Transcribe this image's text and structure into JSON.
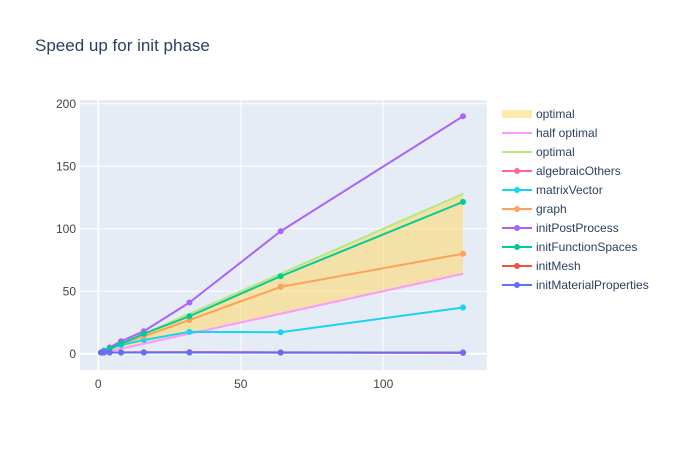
{
  "chart_data": {
    "type": "line",
    "title": "Speed up for init phase",
    "xlabel": "",
    "ylabel": "",
    "xlim": [
      -6.4,
      136.4
    ],
    "ylim": [
      -13,
      203
    ],
    "x_ticks": [
      0,
      50,
      100
    ],
    "y_ticks": [
      0,
      50,
      100,
      150,
      200
    ],
    "grid": true,
    "legend_position": "right",
    "band": {
      "name": "optimal",
      "color": "#ffd966",
      "x": [
        1,
        2,
        4,
        8,
        16,
        32,
        64,
        128
      ],
      "lower": [
        0.5,
        1,
        2,
        4,
        8,
        16,
        32,
        64
      ],
      "upper": [
        1,
        2,
        4,
        8,
        16,
        32,
        64,
        128
      ]
    },
    "series": [
      {
        "name": "half optimal",
        "color": "#ff97ff",
        "markers": false,
        "x": [
          1,
          2,
          4,
          8,
          16,
          32,
          64,
          128
        ],
        "values": [
          0.5,
          1,
          2,
          4,
          8,
          16,
          32,
          64
        ]
      },
      {
        "name": "optimal",
        "color": "#b6e880",
        "markers": false,
        "x": [
          1,
          2,
          4,
          8,
          16,
          32,
          64,
          128
        ],
        "values": [
          1,
          2,
          4,
          8,
          16,
          32,
          64,
          128
        ]
      },
      {
        "name": "algebraicOthers",
        "color": "#ff6692",
        "markers": true,
        "x": [
          1,
          2,
          4,
          8,
          16,
          32,
          64,
          128
        ],
        "values": [
          1,
          1,
          1,
          1,
          1,
          1,
          0.8,
          0.6
        ]
      },
      {
        "name": "matrixVector",
        "color": "#19d3f3",
        "markers": true,
        "x": [
          1,
          2,
          4,
          8,
          16,
          32,
          64,
          128
        ],
        "values": [
          1,
          2,
          4,
          7,
          11,
          17.5,
          17.2,
          37
        ]
      },
      {
        "name": "graph",
        "color": "#ffa15a",
        "markers": true,
        "x": [
          1,
          2,
          4,
          8,
          16,
          32,
          64,
          128
        ],
        "values": [
          1,
          2,
          4,
          8,
          14,
          27,
          53.5,
          80
        ]
      },
      {
        "name": "initPostProcess",
        "color": "#ab63fa",
        "markers": true,
        "x": [
          1,
          2,
          4,
          8,
          16,
          32,
          64,
          128
        ],
        "values": [
          1,
          2.5,
          5,
          10,
          18,
          41,
          98,
          190
        ]
      },
      {
        "name": "initFunctionSpaces",
        "color": "#00cc96",
        "markers": true,
        "x": [
          1,
          2,
          4,
          8,
          16,
          32,
          64,
          128
        ],
        "values": [
          1,
          2,
          4,
          8,
          16,
          30,
          62,
          121.5
        ]
      },
      {
        "name": "initMesh",
        "color": "#ef553b",
        "markers": true,
        "x": [
          1,
          2,
          4,
          8,
          16,
          32,
          64,
          128
        ],
        "values": [
          1,
          1,
          1,
          1,
          1.2,
          1.3,
          1.1,
          0.9
        ]
      },
      {
        "name": "initMaterialProperties",
        "color": "#636efa",
        "markers": true,
        "x": [
          1,
          2,
          4,
          8,
          16,
          32,
          64,
          128
        ],
        "values": [
          1,
          1,
          1,
          1,
          1,
          1,
          1,
          1
        ]
      }
    ],
    "colors": {
      "plot_background": "#e5ecf6",
      "grid": "#ffffff",
      "text": "#2a3f5f",
      "tick_text": "#444444"
    }
  }
}
